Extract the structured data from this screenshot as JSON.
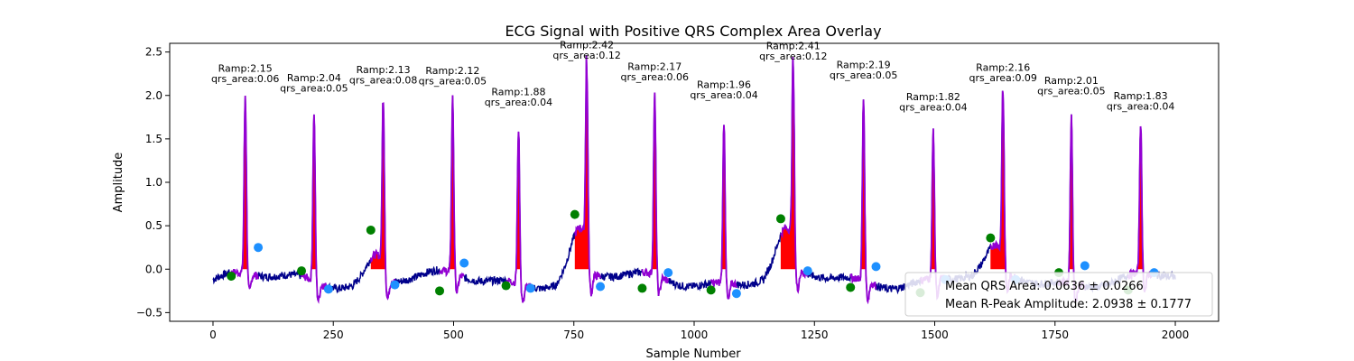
{
  "chart_data": {
    "type": "line",
    "title": "ECG Signal with Positive QRS Complex Area Overlay",
    "xlabel": "Sample Number",
    "ylabel": "Amplitude",
    "xlim": [
      -90,
      2090
    ],
    "ylim": [
      -0.6,
      2.6
    ],
    "xticks": [
      0,
      250,
      500,
      750,
      1000,
      1250,
      1500,
      1750,
      2000
    ],
    "yticks": [
      -0.5,
      0.0,
      0.5,
      1.0,
      1.5,
      2.0,
      2.5
    ],
    "xtick_labels": [
      "0",
      "250",
      "500",
      "750",
      "1000",
      "1250",
      "1500",
      "1750",
      "2000"
    ],
    "ytick_labels": [
      "−0.5",
      "0.0",
      "0.5",
      "1.0",
      "1.5",
      "2.0",
      "2.5"
    ],
    "grid": false,
    "legend_position": "lower-right",
    "colors": {
      "signal": "#00008b",
      "qrs_segment": "#9400d3",
      "qrs_area": "#ff0000",
      "q_onset_marker": "#008000",
      "s_offset_marker": "#1e90ff"
    },
    "beats": [
      {
        "r_x": 67,
        "r_amp": 2.15,
        "qrs_area": 0.06,
        "ramp_label": "Ramp:2.15",
        "area_label": "qrs_area:0.06",
        "onset_x": 38,
        "onset_y": -0.08,
        "offset_x": 94,
        "offset_y": 0.25,
        "base": 0.03,
        "area_start": 38,
        "area_end": 94
      },
      {
        "r_x": 210,
        "r_amp": 2.04,
        "qrs_area": 0.05,
        "ramp_label": "Ramp:2.04",
        "area_label": "qrs_area:0.05",
        "onset_x": 184,
        "onset_y": -0.02,
        "offset_x": 240,
        "offset_y": -0.23,
        "base": 0.0,
        "area_start": 188,
        "area_end": 226
      },
      {
        "r_x": 354,
        "r_amp": 2.13,
        "qrs_area": 0.08,
        "ramp_label": "Ramp:2.13",
        "area_label": "qrs_area:0.08",
        "onset_x": 328,
        "onset_y": 0.45,
        "offset_x": 378,
        "offset_y": -0.18,
        "base": 0.3,
        "area_start": 328,
        "area_end": 380
      },
      {
        "r_x": 498,
        "r_amp": 2.12,
        "qrs_area": 0.05,
        "ramp_label": "Ramp:2.12",
        "area_label": "qrs_area:0.05",
        "onset_x": 471,
        "onset_y": -0.25,
        "offset_x": 522,
        "offset_y": 0.07,
        "base": 0.05,
        "area_start": 488,
        "area_end": 522
      },
      {
        "r_x": 635,
        "r_amp": 1.88,
        "qrs_area": 0.04,
        "ramp_label": "Ramp:1.88",
        "area_label": "qrs_area:0.04",
        "onset_x": 609,
        "onset_y": -0.19,
        "offset_x": 660,
        "offset_y": -0.22,
        "base": 0.0,
        "area_start": 626,
        "area_end": 642
      },
      {
        "r_x": 777,
        "r_amp": 2.42,
        "qrs_area": 0.12,
        "ramp_label": "Ramp:2.42",
        "area_label": "qrs_area:0.12",
        "onset_x": 752,
        "onset_y": 0.63,
        "offset_x": 805,
        "offset_y": -0.2,
        "base": 0.55,
        "area_start": 752,
        "area_end": 800
      },
      {
        "r_x": 918,
        "r_amp": 2.17,
        "qrs_area": 0.06,
        "ramp_label": "Ramp:2.17",
        "area_label": "qrs_area:0.06",
        "onset_x": 892,
        "onset_y": -0.22,
        "offset_x": 946,
        "offset_y": -0.04,
        "base": 0.0,
        "area_start": 908,
        "area_end": 930
      },
      {
        "r_x": 1062,
        "r_amp": 1.96,
        "qrs_area": 0.04,
        "ramp_label": "Ramp:1.96",
        "area_label": "qrs_area:0.04",
        "onset_x": 1035,
        "onset_y": -0.24,
        "offset_x": 1088,
        "offset_y": -0.28,
        "base": 0.0,
        "area_start": 1052,
        "area_end": 1070
      },
      {
        "r_x": 1206,
        "r_amp": 2.41,
        "qrs_area": 0.12,
        "ramp_label": "Ramp:2.41",
        "area_label": "qrs_area:0.12",
        "onset_x": 1180,
        "onset_y": 0.58,
        "offset_x": 1236,
        "offset_y": -0.02,
        "base": 0.5,
        "area_start": 1180,
        "area_end": 1232
      },
      {
        "r_x": 1352,
        "r_amp": 2.19,
        "qrs_area": 0.05,
        "ramp_label": "Ramp:2.19",
        "area_label": "qrs_area:0.05",
        "onset_x": 1325,
        "onset_y": -0.21,
        "offset_x": 1378,
        "offset_y": 0.03,
        "base": 0.05,
        "area_start": 1340,
        "area_end": 1375
      },
      {
        "r_x": 1497,
        "r_amp": 1.82,
        "qrs_area": 0.04,
        "ramp_label": "Ramp:1.82",
        "area_label": "qrs_area:0.04",
        "onset_x": 1470,
        "onset_y": -0.27,
        "offset_x": 1522,
        "offset_y": -0.12,
        "base": 0.0,
        "area_start": 1488,
        "area_end": 1505
      },
      {
        "r_x": 1642,
        "r_amp": 2.16,
        "qrs_area": 0.09,
        "ramp_label": "Ramp:2.16",
        "area_label": "qrs_area:0.09",
        "onset_x": 1616,
        "onset_y": 0.36,
        "offset_x": 1668,
        "offset_y": -0.12,
        "base": 0.3,
        "area_start": 1616,
        "area_end": 1665
      },
      {
        "r_x": 1784,
        "r_amp": 2.01,
        "qrs_area": 0.05,
        "ramp_label": "Ramp:2.01",
        "area_label": "qrs_area:0.05",
        "onset_x": 1758,
        "onset_y": -0.04,
        "offset_x": 1812,
        "offset_y": 0.04,
        "base": 0.03,
        "area_start": 1772,
        "area_end": 1812
      },
      {
        "r_x": 1928,
        "r_amp": 1.83,
        "qrs_area": 0.04,
        "ramp_label": "Ramp:1.83",
        "area_label": "qrs_area:0.04",
        "onset_x": 1902,
        "onset_y": -0.24,
        "offset_x": 1956,
        "offset_y": -0.04,
        "base": 0.0,
        "area_start": 1918,
        "area_end": 1936
      }
    ],
    "legend": {
      "line1": "Mean QRS Area: 0.0636 ± 0.0266",
      "line2": "Mean R-Peak Amplitude: 2.0938 ± 0.1777"
    }
  }
}
